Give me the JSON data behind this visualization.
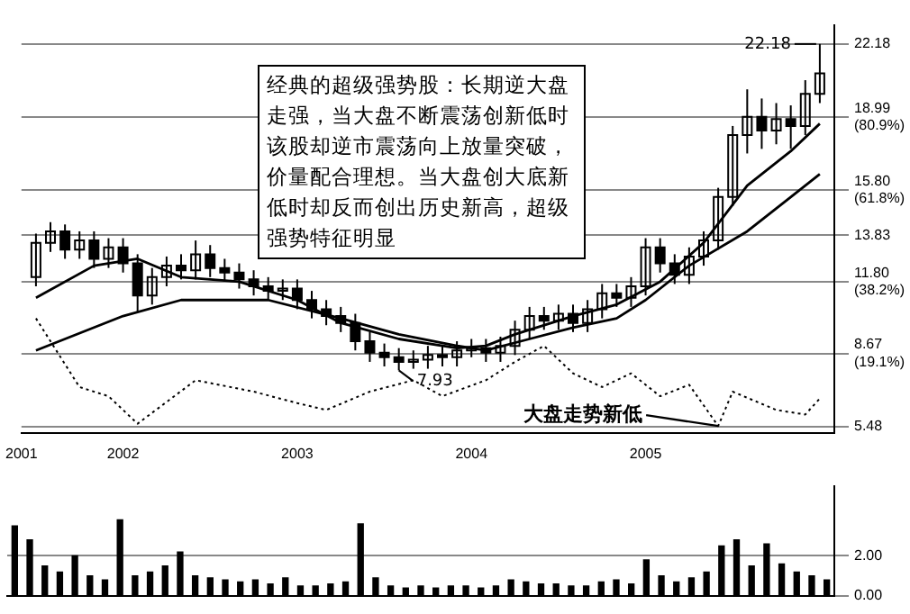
{
  "chart_data": [
    {
      "type": "candlestick",
      "annotations": [
        "经典的超级强势股：长期逆大盘走强，当大盘不断震荡创新低时该股却逆市震荡向上放量突破，价量配合理想。当大盘创大底新低时却反而创出历史新高，超级强势特征明显",
        {
          "text": "大盘走势新低",
          "x": "2005-06",
          "y": 5.5
        },
        {
          "text": "7.93",
          "x": "2003-08",
          "y": 7.93
        },
        {
          "text": "22.18",
          "x": "2006-01",
          "y": 22.18
        }
      ],
      "xlim": [
        "2001-06",
        "2006-02"
      ],
      "xticks": [
        {
          "value": "2001-06",
          "label": "2001"
        },
        {
          "value": "2002",
          "label": "2002"
        },
        {
          "value": "2003",
          "label": "2003"
        },
        {
          "value": "2004",
          "label": "2004"
        },
        {
          "value": "2005",
          "label": "2005"
        }
      ],
      "ylim": [
        5.2,
        23
      ],
      "yticks": [
        5.48,
        {
          "value": 8.67,
          "label": "8.67 (19.1%)"
        },
        {
          "value": 11.8,
          "label": "11.80 (38.2%)"
        },
        13.83,
        {
          "value": 15.8,
          "label": "15.80 (61.8%)"
        },
        {
          "value": 18.99,
          "label": "18.99 (80.9%)"
        },
        22.18
      ],
      "grid": "y",
      "series": [
        {
          "type": "candlestick",
          "color": "#000000",
          "x": [
            "2001-07",
            "2001-08",
            "2001-09",
            "2001-10",
            "2001-11",
            "2001-12",
            "2002-01",
            "2002-02",
            "2002-03",
            "2002-04",
            "2002-05",
            "2002-06",
            "2002-07",
            "2002-08",
            "2002-09",
            "2002-10",
            "2002-11",
            "2002-12",
            "2003-01",
            "2003-02",
            "2003-03",
            "2003-04",
            "2003-05",
            "2003-06",
            "2003-07",
            "2003-08",
            "2003-09",
            "2003-10",
            "2003-11",
            "2003-12",
            "2004-01",
            "2004-02",
            "2004-03",
            "2004-04",
            "2004-05",
            "2004-06",
            "2004-07",
            "2004-08",
            "2004-09",
            "2004-10",
            "2004-11",
            "2004-12",
            "2005-01",
            "2005-02",
            "2005-03",
            "2005-04",
            "2005-05",
            "2005-06",
            "2005-07",
            "2005-08",
            "2005-09",
            "2005-10",
            "2005-11",
            "2005-12",
            "2006-01"
          ],
          "ohlc": [
            [
              12.0,
              13.9,
              11.6,
              13.5
            ],
            [
              13.5,
              14.4,
              13.1,
              14.0
            ],
            [
              14.0,
              14.3,
              12.8,
              13.2
            ],
            [
              13.2,
              14.0,
              12.8,
              13.6
            ],
            [
              13.6,
              14.0,
              12.4,
              12.8
            ],
            [
              12.8,
              13.7,
              12.4,
              13.3
            ],
            [
              13.3,
              13.7,
              12.2,
              12.6
            ],
            [
              12.6,
              13.0,
              10.5,
              11.2
            ],
            [
              11.2,
              12.4,
              10.8,
              12.0
            ],
            [
              12.0,
              12.9,
              11.6,
              12.5
            ],
            [
              12.5,
              13.0,
              11.9,
              12.3
            ],
            [
              12.3,
              13.6,
              11.9,
              13.0
            ],
            [
              13.0,
              13.4,
              12.0,
              12.4
            ],
            [
              12.4,
              12.8,
              11.8,
              12.2
            ],
            [
              12.2,
              12.6,
              11.5,
              11.9
            ],
            [
              11.9,
              12.3,
              11.2,
              11.6
            ],
            [
              11.6,
              12.0,
              11.0,
              11.4
            ],
            [
              11.4,
              11.9,
              11.0,
              11.5
            ],
            [
              11.5,
              11.9,
              10.6,
              11.0
            ],
            [
              11.0,
              11.4,
              10.2,
              10.6
            ],
            [
              10.6,
              11.0,
              9.9,
              10.3
            ],
            [
              10.3,
              10.7,
              9.6,
              10.0
            ],
            [
              10.0,
              10.4,
              8.8,
              9.2
            ],
            [
              9.2,
              9.6,
              8.3,
              8.7
            ],
            [
              8.7,
              9.1,
              8.1,
              8.5
            ],
            [
              8.5,
              8.9,
              7.93,
              8.3
            ],
            [
              8.3,
              8.8,
              8.0,
              8.4
            ],
            [
              8.4,
              9.0,
              8.0,
              8.6
            ],
            [
              8.6,
              9.0,
              8.1,
              8.5
            ],
            [
              8.5,
              9.2,
              8.1,
              8.8
            ],
            [
              8.8,
              9.3,
              8.5,
              8.9
            ],
            [
              8.9,
              9.3,
              8.3,
              8.7
            ],
            [
              8.7,
              9.4,
              8.3,
              9.0
            ],
            [
              9.0,
              10.1,
              8.6,
              9.7
            ],
            [
              9.7,
              10.7,
              9.3,
              10.3
            ],
            [
              10.3,
              10.7,
              9.7,
              10.1
            ],
            [
              10.1,
              10.8,
              9.7,
              10.4
            ],
            [
              10.4,
              10.8,
              9.6,
              10.0
            ],
            [
              10.0,
              11.0,
              9.6,
              10.6
            ],
            [
              10.6,
              11.7,
              10.2,
              11.3
            ],
            [
              11.3,
              11.7,
              10.7,
              11.1
            ],
            [
              11.1,
              12.0,
              10.7,
              11.6
            ],
            [
              11.6,
              13.7,
              11.2,
              13.3
            ],
            [
              13.3,
              13.7,
              12.2,
              12.6
            ],
            [
              12.6,
              13.0,
              11.7,
              12.1
            ],
            [
              12.1,
              13.3,
              11.7,
              12.9
            ],
            [
              12.9,
              14.0,
              12.5,
              13.6
            ],
            [
              13.6,
              15.9,
              13.2,
              15.5
            ],
            [
              15.5,
              18.6,
              15.1,
              18.2
            ],
            [
              18.2,
              20.2,
              17.4,
              19.0
            ],
            [
              19.0,
              19.8,
              17.6,
              18.4
            ],
            [
              18.4,
              19.6,
              17.8,
              18.9
            ],
            [
              18.9,
              19.5,
              17.6,
              18.6
            ],
            [
              18.6,
              20.6,
              18.2,
              20.0
            ],
            [
              20.0,
              22.18,
              19.6,
              20.9
            ]
          ]
        },
        {
          "type": "line",
          "color": "#000000",
          "line_style": "solid",
          "x": [
            "2001-07",
            "2002-01",
            "2002-05",
            "2002-11",
            "2003-04",
            "2003-08",
            "2003-12",
            "2004-02",
            "2004-05",
            "2004-08",
            "2004-11",
            "2005-01",
            "2005-04",
            "2005-08",
            "2005-11",
            "2006-01"
          ],
          "values": [
            8.8,
            10.3,
            11.0,
            11.0,
            10.2,
            9.5,
            9.0,
            8.8,
            9.3,
            9.8,
            10.2,
            11.0,
            12.5,
            14.0,
            15.5,
            16.5
          ]
        },
        {
          "type": "line",
          "color": "#000000",
          "line_style": "solid",
          "x": [
            "2001-07",
            "2001-11",
            "2002-02",
            "2002-05",
            "2002-09",
            "2003-01",
            "2003-04",
            "2003-08",
            "2003-12",
            "2004-02",
            "2004-04",
            "2004-08",
            "2004-11",
            "2005-02",
            "2005-05",
            "2005-08",
            "2005-11",
            "2006-01"
          ],
          "values": [
            11.1,
            12.5,
            12.8,
            12.0,
            11.8,
            11.0,
            10.0,
            9.3,
            8.9,
            9.0,
            9.5,
            10.3,
            10.8,
            11.8,
            13.5,
            16.0,
            17.5,
            18.7
          ]
        },
        {
          "type": "line",
          "color": "#000000",
          "line_style": "dotted",
          "x": [
            "2001-07",
            "2001-10",
            "2001-12",
            "2002-02",
            "2002-06",
            "2002-10",
            "2003-01",
            "2003-03",
            "2003-06",
            "2003-09",
            "2003-11",
            "2004-02",
            "2004-04",
            "2004-06",
            "2004-08",
            "2004-10",
            "2004-12",
            "2005-02",
            "2005-04",
            "2005-06",
            "2005-07",
            "2005-10",
            "2005-12",
            "2006-01"
          ],
          "values": [
            10.2,
            7.2,
            6.8,
            5.6,
            7.5,
            7.0,
            6.5,
            6.2,
            7.0,
            7.5,
            6.8,
            7.5,
            8.3,
            9.0,
            7.8,
            7.2,
            7.8,
            6.8,
            7.3,
            5.5,
            7.0,
            6.2,
            6.0,
            6.7
          ]
        }
      ]
    },
    {
      "type": "bar",
      "tick_labels": "y",
      "categories": [
        null,
        null,
        null,
        null,
        null,
        null,
        null,
        null,
        null,
        null,
        null,
        null,
        null,
        null,
        null,
        null,
        null,
        null,
        null,
        null,
        null,
        null,
        null,
        null,
        null,
        null,
        null,
        null,
        null,
        null,
        null,
        null,
        null,
        null,
        null,
        null,
        null,
        null,
        null,
        null,
        null,
        null,
        null,
        null,
        null,
        null,
        null,
        null,
        null,
        null,
        null,
        null,
        null,
        null,
        null
      ],
      "ylim": [
        0,
        5.5
      ],
      "yticks": [
        {
          "value": 0,
          "label": "0.00"
        },
        {
          "value": 2,
          "label": "2.00"
        }
      ],
      "grid": "y",
      "series": [
        {
          "type": "bar",
          "color": "#000000",
          "values": [
            3.5,
            2.8,
            1.5,
            1.2,
            2.0,
            1.0,
            0.8,
            3.8,
            1.0,
            1.2,
            1.5,
            2.2,
            1.0,
            0.9,
            0.8,
            0.7,
            0.8,
            0.6,
            0.9,
            0.5,
            0.5,
            0.6,
            0.7,
            3.6,
            0.9,
            0.5,
            0.4,
            0.5,
            0.4,
            0.5,
            0.5,
            0.4,
            0.5,
            0.8,
            0.7,
            0.6,
            0.6,
            0.5,
            0.5,
            0.7,
            0.8,
            0.6,
            1.8,
            1.0,
            0.7,
            0.9,
            1.2,
            2.5,
            2.8,
            1.5,
            2.6,
            1.6,
            1.2,
            1.0,
            0.8
          ]
        }
      ]
    }
  ]
}
